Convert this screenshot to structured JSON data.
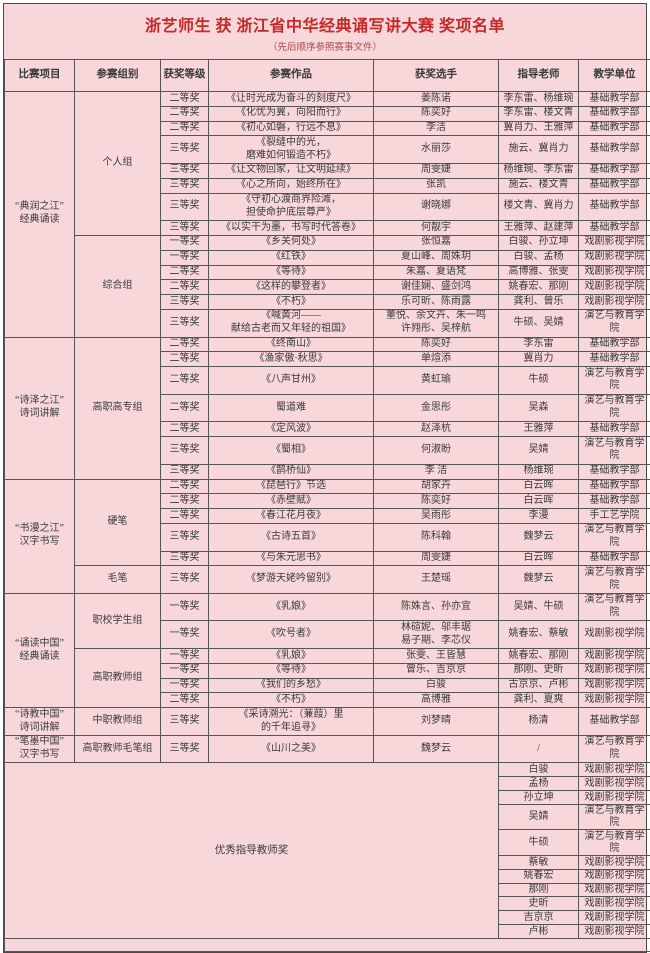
{
  "colors": {
    "background_pink": "#f7d7da",
    "title_red": "#c62828",
    "grid_line": "#555555",
    "body_text": "#3a3a3a"
  },
  "header": {
    "title": "浙艺师生 获 浙江省中华经典诵写讲大赛 奖项名单",
    "subtitle": "（先后顺序参照赛事文件）"
  },
  "table": {
    "columns": [
      "比赛项目",
      "参赛组别",
      "获奖等级",
      "参赛作品",
      "获奖选手",
      "指导老师",
      "教学单位"
    ],
    "sections": [
      {
        "project": "“典润之江”\n经典诵读",
        "groups": [
          {
            "name": "个人组",
            "rows": [
              {
                "level": "二等奖",
                "work": "《让时光成为奋斗的刻度尺》",
                "winner": "姜陈诺",
                "teacher": "李东雷、杨维琬",
                "unit": "基础教学部"
              },
              {
                "level": "二等奖",
                "work": "《化忧为翼，向阳而行》",
                "winner": "陈奕好",
                "teacher": "李东雷、楼文青",
                "unit": "基础教学部"
              },
              {
                "level": "二等奖",
                "work": "《初心如磐，行远不息》",
                "winner": "李洁",
                "teacher": "冀肖力、王雅萍",
                "unit": "基础教学部"
              },
              {
                "level": "三等奖",
                "work": "《裂缝中的光，\n磨难如何锻造不朽》",
                "winner": "水丽莎",
                "teacher": "施云、冀肖力",
                "unit": "基础教学部"
              },
              {
                "level": "三等奖",
                "work": "《让文物回家，让文明延续》",
                "winner": "周雯婕",
                "teacher": "杨维琬、李东雷",
                "unit": "基础教学部"
              },
              {
                "level": "三等奖",
                "work": "《心之所向，始终所在》",
                "winner": "张凯",
                "teacher": "施云、楼文青",
                "unit": "基础教学部"
              },
              {
                "level": "三等奖",
                "work": "《守初心渡商界险滩，\n担使命护底层尊严》",
                "winner": "谢晓娜",
                "teacher": "楼文青、冀肖力",
                "unit": "基础教学部"
              },
              {
                "level": "三等奖",
                "work": "《以实干为墨，书写时代答卷》",
                "winner": "何靓宇",
                "teacher": "王雅萍、赵建萍",
                "unit": "基础教学部"
              }
            ]
          },
          {
            "name": "综合组",
            "rows": [
              {
                "level": "一等奖",
                "work": "《乡关何处》",
                "winner": "张恒嘉",
                "teacher": "白骏、孙立坤",
                "unit": "戏剧影视学院"
              },
              {
                "level": "一等奖",
                "work": "《红铁》",
                "winner": "夏山峰、周姝玥",
                "teacher": "白骏、孟杨",
                "unit": "戏剧影视学院"
              },
              {
                "level": "二等奖",
                "work": "《等待》",
                "winner": "朱嘉、夏语梵",
                "teacher": "高博雅、张雯",
                "unit": "戏剧影视学院"
              },
              {
                "level": "二等奖",
                "work": "《这样的攀登者》",
                "winner": "谢佳娴、盛剑鸿",
                "teacher": "姚春宏、那刚",
                "unit": "戏剧影视学院"
              },
              {
                "level": "三等奖",
                "work": "《不朽》",
                "winner": "乐可昕、陈雨露",
                "teacher": "龚利、曾乐",
                "unit": "戏剧影视学院"
              },
              {
                "level": "三等奖",
                "work": "《喊黄河——\n献给古老而又年轻的祖国》",
                "winner": "董悦、余文卉、朱一鸣\n许翙彤、吴梓航",
                "teacher": "牛硕、吴婧",
                "unit": "演艺与教育学院"
              }
            ]
          }
        ]
      },
      {
        "project": "“诗泽之江”\n诗词讲解",
        "groups": [
          {
            "name": "高职高专组",
            "rows": [
              {
                "level": "二等奖",
                "work": "《终南山》",
                "winner": "陈奕好",
                "teacher": "李东雷",
                "unit": "基础教学部"
              },
              {
                "level": "二等奖",
                "work": "《渔家傲·秋思》",
                "winner": "单煊添",
                "teacher": "冀肖力",
                "unit": "基础教学部"
              },
              {
                "level": "二等奖",
                "work": "《八声甘州》",
                "winner": "黄虹瑜",
                "teacher": "牛硕",
                "unit": "演艺与教育学院"
              },
              {
                "level": "二等奖",
                "work": "蜀道难",
                "winner": "金思彤",
                "teacher": "吴森",
                "unit": "演艺与教育学院"
              },
              {
                "level": "二等奖",
                "work": "《定风波》",
                "winner": "赵泽杭",
                "teacher": "王雅萍",
                "unit": "基础教学部"
              },
              {
                "level": "三等奖",
                "work": "《蜀相》",
                "winner": "何淑盼",
                "teacher": "吴婧",
                "unit": "演艺与教育学院"
              },
              {
                "level": "三等奖",
                "work": "《鹊桥仙》",
                "winner": "李 洁",
                "teacher": "杨维琬",
                "unit": "基础教学部"
              }
            ]
          }
        ]
      },
      {
        "project": "“书漫之江”\n汉字书写",
        "groups": [
          {
            "name": "硬笔",
            "rows": [
              {
                "level": "二等奖",
                "work": "《琵琶行》节选",
                "winner": "胡家卉",
                "teacher": "白云晖",
                "unit": "基础教学部"
              },
              {
                "level": "二等奖",
                "work": "《赤壁赋》",
                "winner": "陈奕好",
                "teacher": "白云晖",
                "unit": "基础教学部"
              },
              {
                "level": "二等奖",
                "work": "《春江花月夜》",
                "winner": "吴雨彤",
                "teacher": "李漫",
                "unit": "手工艺学院"
              },
              {
                "level": "三等奖",
                "work": "《古诗五首》",
                "winner": "陈科翰",
                "teacher": "魏梦云",
                "unit": "演艺与教育学院"
              },
              {
                "level": "三等奖",
                "work": "《与朱元思书》",
                "winner": "周雯婕",
                "teacher": "白云晖",
                "unit": "基础教学部"
              }
            ]
          },
          {
            "name": "毛笔",
            "rows": [
              {
                "level": "三等奖",
                "work": "《梦游天姥吟留别》",
                "winner": "王楚瑶",
                "teacher": "魏梦云",
                "unit": "演艺与教育学院"
              }
            ]
          }
        ]
      },
      {
        "project": "“诵读中国”\n经典诵读",
        "groups": [
          {
            "name": "职校学生组",
            "rows": [
              {
                "level": "一等奖",
                "work": "《乳娘》",
                "winner": "陈姝言、孙亦宜",
                "teacher": "吴婧、牛硕",
                "unit": "演艺与教育学院"
              },
              {
                "level": "一等奖",
                "work": "《吹号者》",
                "winner": "林碹妮、邬丰琚\n易子期、李芯仪",
                "teacher": "姚春宏、蔡敏",
                "unit": "戏剧影视学院"
              }
            ]
          },
          {
            "name": "高职教师组",
            "rows": [
              {
                "level": "一等奖",
                "work": "《乳娘》",
                "winner": "张雯、王皆慧",
                "teacher": "姚春宏、那刚",
                "unit": "戏剧影视学院"
              },
              {
                "level": "一等奖",
                "work": "《等待》",
                "winner": "曾乐、吉京京",
                "teacher": "那刚、史昕",
                "unit": "戏剧影视学院"
              },
              {
                "level": "一等奖",
                "work": "《我们的乡愁》",
                "winner": "白骏",
                "teacher": "古京京、卢彬",
                "unit": "戏剧影视学院"
              },
              {
                "level": "二等奖",
                "work": "《不朽》",
                "winner": "高博雅",
                "teacher": "龚利、夏爽",
                "unit": "戏剧影视学院"
              }
            ]
          }
        ]
      },
      {
        "project": "“诗教中国”\n诗词讲解",
        "groups": [
          {
            "name": "中职教师组",
            "rows": [
              {
                "level": "三等奖",
                "work": "《采诗溯光：（蒹葭）里\n的千年追寻》",
                "winner": "刘梦晴",
                "teacher": "杨清",
                "unit": "基础教学部"
              }
            ]
          }
        ]
      },
      {
        "project": "“笔墨中国”\n汉字书写",
        "groups": [
          {
            "name": "高职教师毛笔组",
            "rows": [
              {
                "level": "三等奖",
                "work": "《山川之美》",
                "winner": "魏梦云",
                "teacher": "/",
                "unit": "演艺与教育学院"
              }
            ]
          }
        ]
      }
    ],
    "special": {
      "label": "优秀指导教师奖",
      "teachers": [
        {
          "name": "白骏",
          "unit": "戏剧影视学院"
        },
        {
          "name": "孟杨",
          "unit": "戏剧影视学院"
        },
        {
          "name": "孙立坤",
          "unit": "戏剧影视学院"
        },
        {
          "name": "吴婧",
          "unit": "演艺与教育学院"
        },
        {
          "name": "牛硕",
          "unit": "演艺与教育学院"
        },
        {
          "name": "蔡敏",
          "unit": "戏剧影视学院"
        },
        {
          "name": "姚春宏",
          "unit": "戏剧影视学院"
        },
        {
          "name": "那刚",
          "unit": "戏剧影视学院"
        },
        {
          "name": "史昕",
          "unit": "戏剧影视学院"
        },
        {
          "name": "吉京京",
          "unit": "戏剧影视学院"
        },
        {
          "name": "卢彬",
          "unit": "戏剧影视学院"
        }
      ]
    }
  }
}
